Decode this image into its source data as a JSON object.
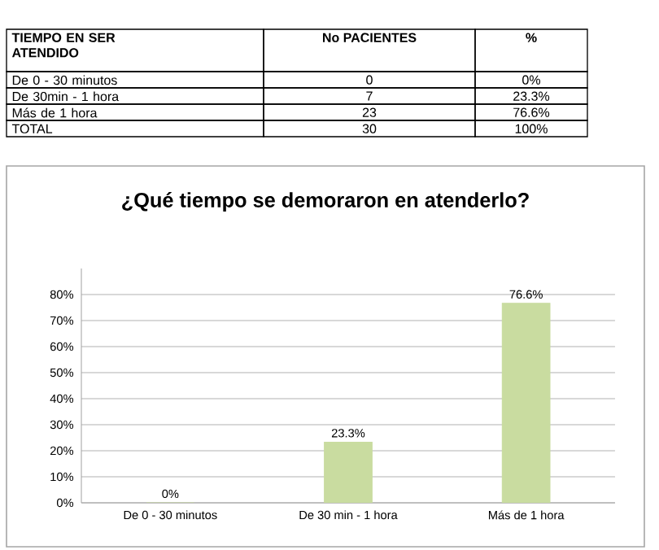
{
  "chart_data": {
    "type": "bar",
    "title": "¿Qué tiempo se demoraron en  atenderlo?",
    "categories": [
      "De 0 - 30 minutos",
      "De 30 min - 1 hora",
      "Más de 1 hora"
    ],
    "values": [
      0,
      23.3,
      76.6
    ],
    "value_labels": [
      "0%",
      "23.3%",
      "76.6%"
    ],
    "color": "#c9dca0",
    "ylim": [
      0,
      90
    ],
    "yticks": [
      {
        "value": 0,
        "label": "0%"
      },
      {
        "value": 10,
        "label": "10%"
      },
      {
        "value": 20,
        "label": "20%"
      },
      {
        "value": 30,
        "label": "30%"
      },
      {
        "value": 40,
        "label": "40%"
      },
      {
        "value": 50,
        "label": "50%"
      },
      {
        "value": 60,
        "label": "60%"
      },
      {
        "value": 70,
        "label": "70%"
      },
      {
        "value": 80,
        "label": "80%"
      }
    ],
    "grid": "y",
    "annotations": [
      "TIEMPO EN SER ATENDIDO",
      "No PACIENTES",
      "%",
      "De 0  -  30 minutos",
      "0",
      "0%",
      "De 30min  - 1 hora",
      "7",
      "23.3%",
      "Más de 1 hora",
      "23",
      "76.6%",
      "TOTAL",
      "30",
      "100%"
    ]
  }
}
